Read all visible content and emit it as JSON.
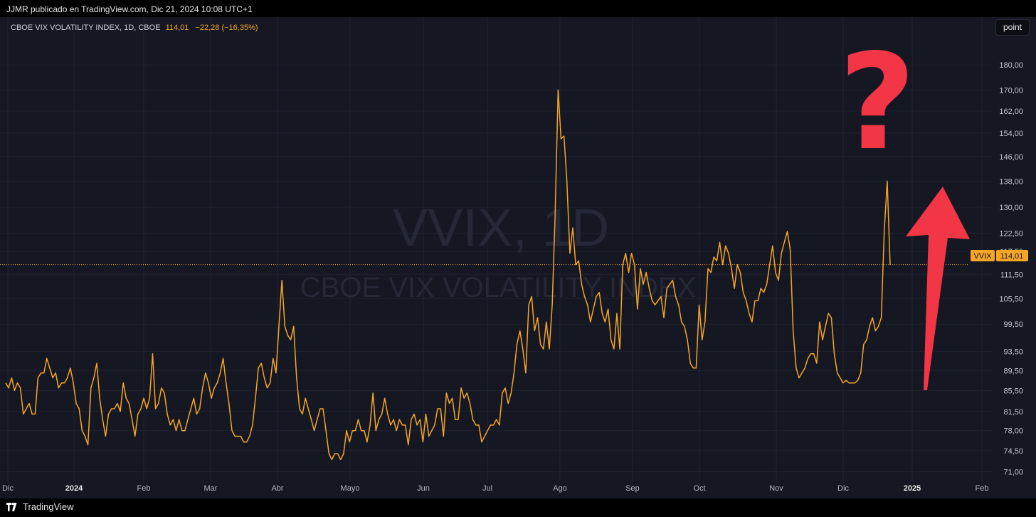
{
  "header": {
    "published": "JJMR publicado en TradingView.com, Dic 21, 2024 10:08 UTC+1"
  },
  "legend": {
    "symbol": "CBOE VIX VOLATILITY INDEX, 1D, CBOE",
    "value": "114,01",
    "change": "−22,28 (−16,35%)"
  },
  "scale_button": "point",
  "watermark": {
    "line1": "VVIX, 1D",
    "line2": "CBOE VIX VOLATILITY INDEX"
  },
  "price_tag": {
    "symbol": "VVIX",
    "value": "114,01"
  },
  "footer": {
    "brand": "TradingView"
  },
  "colors": {
    "series": "#f7a525",
    "background": "#151823",
    "annotation": "#f23645",
    "grid": "#1f2230"
  },
  "annotations": {
    "question_mark": "?",
    "arrow": "up-arrow"
  },
  "chart_data": {
    "type": "line",
    "series": [
      {
        "name": "VVIX",
        "values": [
          87,
          86,
          88,
          85.5,
          87,
          86,
          81,
          82,
          83,
          81,
          81,
          88,
          89,
          89,
          92,
          90,
          88,
          89,
          86,
          87,
          87,
          88,
          90,
          87,
          83,
          82,
          78,
          77,
          75.5,
          86,
          88,
          91,
          84,
          80,
          77,
          81,
          82,
          82,
          83,
          81.5,
          87,
          84,
          83,
          80,
          77,
          81,
          82,
          84,
          82,
          84,
          93,
          82,
          83,
          86,
          85,
          81,
          79,
          80,
          78,
          80,
          78,
          78,
          80,
          82,
          84,
          81,
          82,
          86,
          89,
          87,
          84,
          86,
          87,
          89,
          92,
          87,
          83,
          78,
          77,
          77,
          77,
          76,
          76,
          77,
          79,
          84,
          90,
          91,
          88,
          86,
          87,
          92,
          89,
          99,
          110,
          99,
          97,
          96,
          99,
          88,
          82,
          81,
          84,
          82,
          80,
          78,
          80,
          82,
          82,
          78,
          74,
          73,
          74,
          74,
          73,
          74,
          78,
          76,
          78,
          78,
          80,
          78,
          78,
          76,
          79,
          85,
          78,
          80,
          81,
          84,
          81,
          79,
          80,
          78,
          80,
          79,
          79,
          75.5,
          80,
          81,
          79,
          80,
          76,
          81,
          77,
          78,
          79,
          82,
          82,
          77,
          85,
          83,
          84,
          80,
          80,
          86,
          84,
          85,
          83,
          80,
          79,
          79,
          76,
          77,
          78,
          79,
          79,
          80,
          79,
          85,
          86,
          83,
          85,
          89,
          95,
          98,
          94,
          89,
          104,
          106,
          98,
          101,
          95,
          94,
          100,
          94,
          104,
          128,
          170,
          152,
          153,
          138,
          117,
          124,
          114,
          115,
          109,
          106,
          104,
          100,
          103,
          106,
          107,
          102,
          100,
          103,
          96,
          94,
          102,
          94,
          114,
          117,
          112,
          117,
          114,
          103,
          113,
          109,
          112,
          108,
          105,
          104,
          105,
          106,
          101,
          108,
          109,
          110,
          106,
          104,
          100,
          99,
          96,
          91,
          90,
          90,
          104,
          96,
          100,
          113,
          112,
          116,
          115,
          120,
          114,
          119,
          117,
          113,
          108,
          114,
          112,
          107,
          105,
          102,
          100,
          105,
          105,
          108,
          107,
          109,
          114,
          119,
          112,
          110,
          117,
          120,
          123,
          118,
          98,
          90,
          88,
          89,
          90,
          92,
          93,
          93,
          91,
          100,
          96,
          99,
          102,
          101,
          93,
          89,
          88,
          87,
          87.5,
          87,
          87,
          87,
          87.5,
          89,
          95,
          96,
          99,
          101,
          98,
          99,
          101,
          123,
          138,
          114
        ]
      }
    ],
    "x_tick_labels": [
      "Dic",
      "2024",
      "Feb",
      "Mar",
      "Abr",
      "Mayo",
      "Jun",
      "Jul",
      "Ago",
      "Sep",
      "Oct",
      "Nov",
      "Dic",
      "2025",
      "Feb"
    ],
    "y_tick_labels": [
      "180,00",
      "170,00",
      "162,00",
      "154,00",
      "146,00",
      "138,00",
      "130,00",
      "122,50",
      "117,50",
      "111,50",
      "105,50",
      "99,50",
      "93,50",
      "89,50",
      "85,50",
      "81,50",
      "78,00",
      "74,50",
      "71,00"
    ],
    "y_scale": "log",
    "ylim": [
      69,
      190
    ],
    "last_value": 114.01,
    "grid": true
  }
}
